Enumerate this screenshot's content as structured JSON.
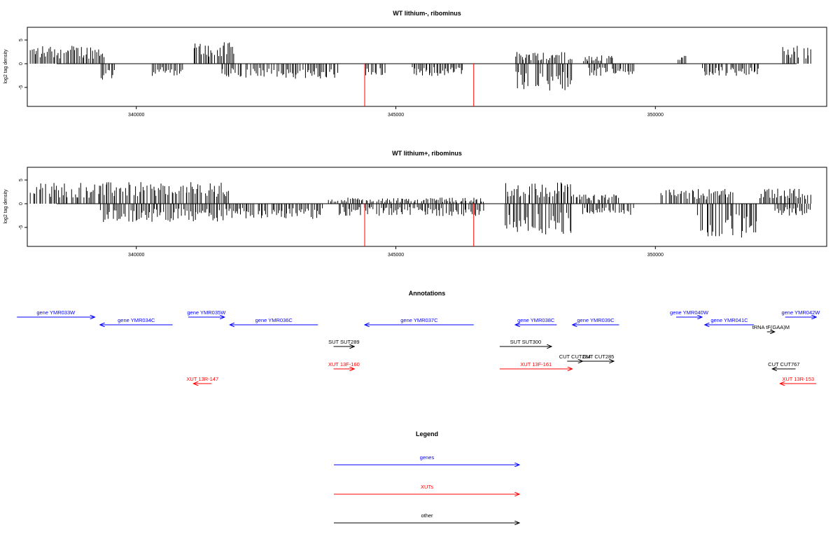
{
  "chart_data": [
    {
      "type": "bar",
      "title": "WT lithium-, ribominus",
      "ylabel": "log2 tag density",
      "xlim": [
        337900,
        353300
      ],
      "ylim": [
        -9,
        8
      ],
      "x_ticks": [
        340000,
        345000,
        350000
      ],
      "y_ticks": [
        5,
        0,
        -5
      ],
      "profile": [
        {
          "x": [
            337950,
            339400
          ],
          "level": 3.0,
          "sign": 1
        },
        {
          "x": [
            339300,
            339600
          ],
          "level": -3.0,
          "sign": -1
        },
        {
          "x": [
            340300,
            340900
          ],
          "level": -2.0,
          "sign": -1
        },
        {
          "x": [
            341100,
            341900
          ],
          "level": 3.5,
          "sign": 1
        },
        {
          "x": [
            341600,
            343900
          ],
          "level": -2.5,
          "sign": -1
        },
        {
          "x": [
            344400,
            344800
          ],
          "level": -2.0,
          "sign": -1
        },
        {
          "x": [
            345300,
            346300
          ],
          "level": -2.0,
          "sign": -1
        },
        {
          "x": [
            347300,
            348400
          ],
          "level": 2.0,
          "sign": 1
        },
        {
          "x": [
            347300,
            348400
          ],
          "level": -4.5,
          "sign": -1
        },
        {
          "x": [
            348600,
            349200
          ],
          "level": 1.5,
          "sign": 1
        },
        {
          "x": [
            348700,
            349600
          ],
          "level": -2.0,
          "sign": -1
        },
        {
          "x": [
            350400,
            350600
          ],
          "level": 1.5,
          "sign": 1
        },
        {
          "x": [
            350900,
            352000
          ],
          "level": -2.0,
          "sign": -1
        },
        {
          "x": [
            352450,
            353000
          ],
          "level": 3.0,
          "sign": 1
        }
      ],
      "red_marks": [
        {
          "x": 344400,
          "y": -9
        },
        {
          "x": 346500,
          "y": -9
        }
      ]
    },
    {
      "type": "bar",
      "title": "WT lithium+, ribominus",
      "ylabel": "log2 tag density",
      "xlim": [
        337900,
        353300
      ],
      "ylim": [
        -9,
        8
      ],
      "x_ticks": [
        340000,
        345000,
        350000
      ],
      "y_ticks": [
        5,
        0,
        -5
      ],
      "profile": [
        {
          "x": [
            337950,
            341800
          ],
          "level": 3.5,
          "sign": 1
        },
        {
          "x": [
            339300,
            341800
          ],
          "level": -3.0,
          "sign": -1
        },
        {
          "x": [
            341800,
            343600
          ],
          "level": -2.5,
          "sign": -1
        },
        {
          "x": [
            343700,
            346700
          ],
          "level": 1.0,
          "sign": 1
        },
        {
          "x": [
            343900,
            346700
          ],
          "level": -2.0,
          "sign": -1
        },
        {
          "x": [
            347100,
            348400
          ],
          "level": 3.5,
          "sign": 1
        },
        {
          "x": [
            347100,
            348400
          ],
          "level": -5.0,
          "sign": -1
        },
        {
          "x": [
            348400,
            349300
          ],
          "level": 1.5,
          "sign": 1
        },
        {
          "x": [
            348600,
            349600
          ],
          "level": -2.0,
          "sign": -1
        },
        {
          "x": [
            350100,
            351500
          ],
          "level": 2.5,
          "sign": 1
        },
        {
          "x": [
            350800,
            352000
          ],
          "level": -5.5,
          "sign": -1
        },
        {
          "x": [
            352000,
            353000
          ],
          "level": 2.5,
          "sign": 1
        },
        {
          "x": [
            352300,
            353000
          ],
          "level": -2.0,
          "sign": -1
        }
      ],
      "red_marks": [
        {
          "x": 344400,
          "y": -9
        },
        {
          "x": 346500,
          "y": -9
        }
      ]
    }
  ],
  "annotations": {
    "title": "Annotations",
    "features": [
      {
        "label": "gene YMR033W",
        "color": "#0000ff",
        "start": 337700,
        "end": 339200,
        "row": 0
      },
      {
        "label": "gene YMR034C",
        "color": "#0000ff",
        "start": 339300,
        "end": 340700,
        "row": 1
      },
      {
        "label": "gene YMR035W",
        "color": "#0000ff",
        "start": 341000,
        "end": 341700,
        "row": 0
      },
      {
        "label": "gene YMR036C",
        "color": "#0000ff",
        "start": 341800,
        "end": 343500,
        "row": 1
      },
      {
        "label": "gene YMR037C",
        "color": "#0000ff",
        "start": 344400,
        "end": 346500,
        "row": 1
      },
      {
        "label": "gene YMR038C",
        "color": "#0000ff",
        "start": 347300,
        "end": 348100,
        "row": 1
      },
      {
        "label": "gene YMR039C",
        "color": "#0000ff",
        "start": 348400,
        "end": 349300,
        "row": 1
      },
      {
        "label": "gene YMR040W",
        "color": "#0000ff",
        "start": 350400,
        "end": 350900,
        "row": 0
      },
      {
        "label": "gene YMR041C",
        "color": "#0000ff",
        "start": 350950,
        "end": 351900,
        "row": 1
      },
      {
        "label": "gene YMR042W",
        "color": "#0000ff",
        "start": 352500,
        "end": 353100,
        "row": 0
      },
      {
        "label": "tRNA tF(GAA)M",
        "color": "#000000",
        "start": 352150,
        "end": 352300,
        "row": 2
      },
      {
        "label": "SUT SUT289",
        "color": "#000000",
        "start": 343800,
        "end": 344200,
        "row": 3
      },
      {
        "label": "SUT SUT300",
        "color": "#000000",
        "start": 347000,
        "end": 348000,
        "row": 3
      },
      {
        "label": "CUT CUT284",
        "color": "#000000",
        "start": 348300,
        "end": 348600,
        "row": 4
      },
      {
        "label": "CUT CUT285",
        "color": "#000000",
        "start": 348600,
        "end": 349200,
        "row": 4
      },
      {
        "label": "CUT CUT767",
        "color": "#000000",
        "start": 352250,
        "end": 352700,
        "row": 5
      },
      {
        "label": "XUT 13R-147",
        "color": "#ff0000",
        "start": 341100,
        "end": 341450,
        "row": 6
      },
      {
        "label": "XUT 13F-160",
        "color": "#ff0000",
        "start": 343800,
        "end": 344200,
        "row": 5
      },
      {
        "label": "XUT 13F-161",
        "color": "#ff0000",
        "start": 347000,
        "end": 348400,
        "row": 5
      },
      {
        "label": "XUT 13R-153",
        "color": "#ff0000",
        "start": 352400,
        "end": 353100,
        "row": 6
      }
    ]
  },
  "legend": {
    "title": "Legend",
    "entries": [
      {
        "label": "genes",
        "color": "#0000ff"
      },
      {
        "label": "XUTs",
        "color": "#ff0000"
      },
      {
        "label": "other",
        "color": "#000000"
      }
    ]
  }
}
